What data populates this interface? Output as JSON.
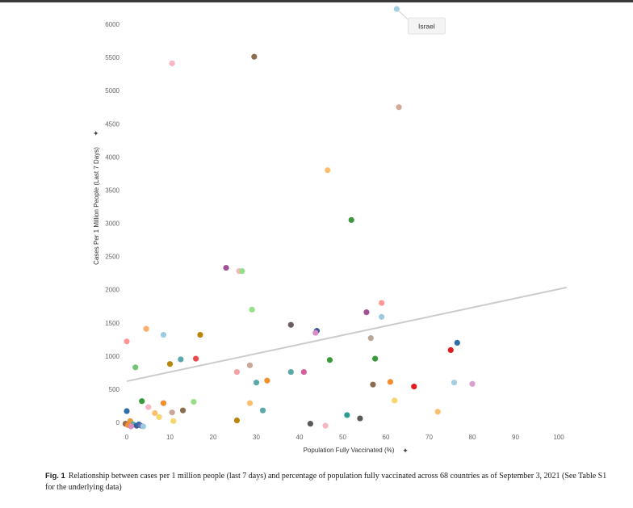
{
  "chart_data": {
    "type": "scatter",
    "xlabel": "Population Fully Vaccinated (%)",
    "ylabel": "Cases Per 1 Million People (Last 7 Days)",
    "xlim": [
      0,
      100
    ],
    "ylim": [
      0,
      6000
    ],
    "x_ticks": [
      "0",
      "10",
      "20",
      "30",
      "40",
      "50",
      "60",
      "70",
      "80",
      "90",
      "100"
    ],
    "y_ticks": [
      "0",
      "500",
      "1000",
      "1500",
      "2000",
      "2500",
      "3000",
      "3500",
      "4000",
      "4500",
      "5000",
      "5500",
      "6000"
    ],
    "x_tick_values": [
      0,
      10,
      20,
      30,
      40,
      50,
      60,
      70,
      80,
      90,
      100
    ],
    "y_tick_values": [
      0,
      500,
      1000,
      1500,
      2000,
      2500,
      3000,
      3500,
      4000,
      4500,
      5000,
      5500,
      6000
    ],
    "pin_glyph": "✦",
    "trendline": {
      "x": [
        0,
        100
      ],
      "y": [
        620,
        2020
      ],
      "color": "#cccccc"
    },
    "annotations": [
      {
        "text": "Israel",
        "x": 62.5,
        "y": 6230
      }
    ],
    "points": [
      {
        "x": 62.5,
        "y": 6230,
        "color": "#a6cee3"
      },
      {
        "x": 29.5,
        "y": 5510,
        "color": "#8c6d4f"
      },
      {
        "x": 10.5,
        "y": 5410,
        "color": "#f7b6c2"
      },
      {
        "x": 63.0,
        "y": 4750,
        "color": "#d3a79a"
      },
      {
        "x": 46.5,
        "y": 3800,
        "color": "#fdbf6f"
      },
      {
        "x": 52.0,
        "y": 3050,
        "color": "#3a9a3a"
      },
      {
        "x": 23.0,
        "y": 2330,
        "color": "#a05195"
      },
      {
        "x": 26.0,
        "y": 2280,
        "color": "#f7b6c2"
      },
      {
        "x": 26.7,
        "y": 2280,
        "color": "#98df8a"
      },
      {
        "x": 29.0,
        "y": 1700,
        "color": "#98df8a"
      },
      {
        "x": 59.0,
        "y": 1800,
        "color": "#ff9896"
      },
      {
        "x": 55.5,
        "y": 1660,
        "color": "#a05195"
      },
      {
        "x": 59.0,
        "y": 1590,
        "color": "#9ecae1"
      },
      {
        "x": 38.0,
        "y": 1470,
        "color": "#6b5e62"
      },
      {
        "x": 44.0,
        "y": 1380,
        "color": "#3b5b92"
      },
      {
        "x": 43.7,
        "y": 1350,
        "color": "#d98cc4"
      },
      {
        "x": 56.5,
        "y": 1270,
        "color": "#b8a89c"
      },
      {
        "x": 4.5,
        "y": 1410,
        "color": "#fdae6b"
      },
      {
        "x": 8.5,
        "y": 1320,
        "color": "#9ecae1"
      },
      {
        "x": 17.0,
        "y": 1320,
        "color": "#b8860b"
      },
      {
        "x": 0.0,
        "y": 1220,
        "color": "#ff9896"
      },
      {
        "x": 76.5,
        "y": 1200,
        "color": "#2f6fa6"
      },
      {
        "x": 75.0,
        "y": 1090,
        "color": "#e31a1c"
      },
      {
        "x": 2.0,
        "y": 830,
        "color": "#74c476"
      },
      {
        "x": 10.0,
        "y": 880,
        "color": "#b8860b"
      },
      {
        "x": 12.5,
        "y": 950,
        "color": "#5aa8a8"
      },
      {
        "x": 16.0,
        "y": 960,
        "color": "#e74c4c"
      },
      {
        "x": 57.5,
        "y": 960,
        "color": "#3a9a3a"
      },
      {
        "x": 47.0,
        "y": 940,
        "color": "#3a9a3a"
      },
      {
        "x": 28.5,
        "y": 860,
        "color": "#c9a89a"
      },
      {
        "x": 25.5,
        "y": 760,
        "color": "#f7a1a6"
      },
      {
        "x": 38.0,
        "y": 760,
        "color": "#5aa8a8"
      },
      {
        "x": 41.0,
        "y": 760,
        "color": "#d35e9a"
      },
      {
        "x": 30.0,
        "y": 600,
        "color": "#5aa8a8"
      },
      {
        "x": 32.5,
        "y": 630,
        "color": "#f28e2b"
      },
      {
        "x": 61.0,
        "y": 610,
        "color": "#f28e2b"
      },
      {
        "x": 57.0,
        "y": 570,
        "color": "#8c6d4f"
      },
      {
        "x": 66.5,
        "y": 540,
        "color": "#e31a1c"
      },
      {
        "x": 75.8,
        "y": 600,
        "color": "#a6cee3"
      },
      {
        "x": 80.0,
        "y": 580,
        "color": "#d9a3d0"
      },
      {
        "x": 62.0,
        "y": 330,
        "color": "#f5d76e"
      },
      {
        "x": 72.0,
        "y": 160,
        "color": "#fdbf6f"
      },
      {
        "x": 3.5,
        "y": 320,
        "color": "#3a9a3a"
      },
      {
        "x": 8.5,
        "y": 290,
        "color": "#f28e2b"
      },
      {
        "x": 15.5,
        "y": 310,
        "color": "#98df8a"
      },
      {
        "x": 28.5,
        "y": 290,
        "color": "#fdbf6f"
      },
      {
        "x": 5.0,
        "y": 230,
        "color": "#f7b6c2"
      },
      {
        "x": 0.0,
        "y": 170,
        "color": "#2f6fa6"
      },
      {
        "x": 6.5,
        "y": 140,
        "color": "#fdbf6f"
      },
      {
        "x": 13.0,
        "y": 180,
        "color": "#8c6d4f"
      },
      {
        "x": 10.5,
        "y": 150,
        "color": "#c9a89a"
      },
      {
        "x": 7.5,
        "y": 80,
        "color": "#f5d76e"
      },
      {
        "x": 31.5,
        "y": 180,
        "color": "#5aa8a8"
      },
      {
        "x": 51.0,
        "y": 110,
        "color": "#2a9d8f"
      },
      {
        "x": 54.0,
        "y": 60,
        "color": "#5b5b5b"
      },
      {
        "x": 25.5,
        "y": 30,
        "color": "#b8860b"
      },
      {
        "x": 10.8,
        "y": 20,
        "color": "#f5d76e"
      },
      {
        "x": 42.5,
        "y": -20,
        "color": "#5b5b5b"
      },
      {
        "x": 46.0,
        "y": -50,
        "color": "#f7b6c2"
      },
      {
        "x": 0.8,
        "y": 20,
        "color": "#e89b3a"
      },
      {
        "x": -0.3,
        "y": -20,
        "color": "#9e6b4f"
      },
      {
        "x": 0.3,
        "y": -40,
        "color": "#f28e2b"
      },
      {
        "x": 1.5,
        "y": -30,
        "color": "#5aa8a8"
      },
      {
        "x": 2.3,
        "y": -50,
        "color": "#3b5b92"
      },
      {
        "x": 2.8,
        "y": -30,
        "color": "#2f6fa6"
      },
      {
        "x": 3.3,
        "y": -50,
        "color": "#6b6fb5"
      },
      {
        "x": 1.0,
        "y": -60,
        "color": "#d98cc4"
      },
      {
        "x": 3.8,
        "y": -60,
        "color": "#9ecae1"
      }
    ]
  },
  "caption": {
    "label": "Fig. 1",
    "text": "Relationship between cases per 1 million people (last 7 days) and percentage of population fully vaccinated across 68 countries as of September 3, 2021 (See Table S1 for the underlying data)"
  }
}
